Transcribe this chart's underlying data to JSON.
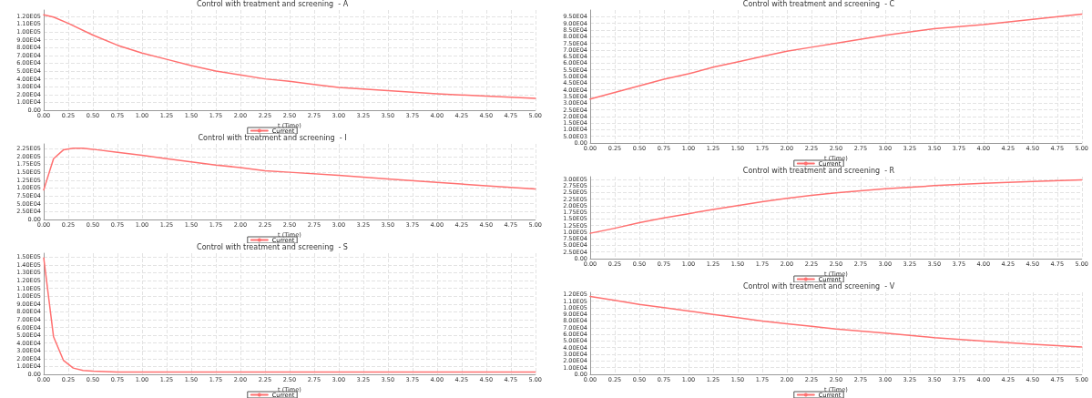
{
  "chart_data": [
    {
      "type": "line",
      "title": "Control with treatment and screening  - A",
      "xlabel": "t (Time)",
      "legend": "bottom",
      "grid": true,
      "marker": "none",
      "line_style": "solid",
      "x": [
        0,
        0.1,
        0.25,
        0.5,
        0.75,
        1,
        1.25,
        1.5,
        1.75,
        2,
        2.25,
        2.5,
        2.75,
        3,
        3.5,
        4,
        4.5,
        5
      ],
      "series": [
        {
          "name": "Current",
          "color": "#ff7070",
          "values": [
            122000,
            119000,
            111000,
            96000,
            83000,
            73000,
            65000,
            57000,
            50000,
            45000,
            40000,
            37000,
            33000,
            29000,
            25000,
            21000,
            18000,
            15000
          ]
        }
      ],
      "xlim": [
        0,
        5
      ],
      "ylim": [
        0,
        128000
      ],
      "xticks": [
        {
          "value": 0,
          "label": "0.00"
        },
        {
          "value": 0.25,
          "label": "0.25"
        },
        {
          "value": 0.5,
          "label": "0.50"
        },
        {
          "value": 0.75,
          "label": "0.75"
        },
        {
          "value": 1,
          "label": "1.00"
        },
        {
          "value": 1.25,
          "label": "1.25"
        },
        {
          "value": 1.5,
          "label": "1.50"
        },
        {
          "value": 1.75,
          "label": "1.75"
        },
        {
          "value": 2,
          "label": "2.00"
        },
        {
          "value": 2.25,
          "label": "2.25"
        },
        {
          "value": 2.5,
          "label": "2.50"
        },
        {
          "value": 2.75,
          "label": "2.75"
        },
        {
          "value": 3,
          "label": "3.00"
        },
        {
          "value": 3.25,
          "label": "3.25"
        },
        {
          "value": 3.5,
          "label": "3.50"
        },
        {
          "value": 3.75,
          "label": "3.75"
        },
        {
          "value": 4,
          "label": "4.00"
        },
        {
          "value": 4.25,
          "label": "4.25"
        },
        {
          "value": 4.5,
          "label": "4.50"
        },
        {
          "value": 4.75,
          "label": "4.75"
        },
        {
          "value": 5,
          "label": "5.00"
        }
      ],
      "yticks": [
        {
          "value": 0,
          "label": "0.00"
        },
        {
          "value": 10000,
          "label": "1.00E04"
        },
        {
          "value": 20000,
          "label": "2.00E04"
        },
        {
          "value": 30000,
          "label": "3.00E04"
        },
        {
          "value": 40000,
          "label": "4.00E04"
        },
        {
          "value": 50000,
          "label": "5.00E04"
        },
        {
          "value": 60000,
          "label": "6.00E04"
        },
        {
          "value": 70000,
          "label": "7.00E04"
        },
        {
          "value": 80000,
          "label": "8.00E04"
        },
        {
          "value": 90000,
          "label": "9.00E04"
        },
        {
          "value": 100000,
          "label": "1.00E05"
        },
        {
          "value": 110000,
          "label": "1.10E05"
        },
        {
          "value": 120000,
          "label": "1.20E05"
        }
      ]
    },
    {
      "type": "line",
      "title": "Control with treatment and screening  - C",
      "xlabel": "t (Time)",
      "legend": "bottom",
      "grid": true,
      "marker": "none",
      "line_style": "solid",
      "x": [
        0,
        0.25,
        0.5,
        0.75,
        1,
        1.25,
        1.5,
        1.75,
        2,
        2.25,
        2.5,
        3,
        3.5,
        4,
        4.5,
        5
      ],
      "series": [
        {
          "name": "Current",
          "color": "#ff7070",
          "values": [
            33000,
            38000,
            43000,
            48000,
            52000,
            57000,
            61000,
            65000,
            69000,
            72000,
            75000,
            81000,
            86000,
            89000,
            93000,
            97000
          ]
        }
      ],
      "xlim": [
        0,
        5
      ],
      "ylim": [
        0,
        100000
      ],
      "xticks": [
        {
          "value": 0,
          "label": "0.00"
        },
        {
          "value": 0.25,
          "label": "0.25"
        },
        {
          "value": 0.5,
          "label": "0.50"
        },
        {
          "value": 0.75,
          "label": "0.75"
        },
        {
          "value": 1,
          "label": "1.00"
        },
        {
          "value": 1.25,
          "label": "1.25"
        },
        {
          "value": 1.5,
          "label": "1.50"
        },
        {
          "value": 1.75,
          "label": "1.75"
        },
        {
          "value": 2,
          "label": "2.00"
        },
        {
          "value": 2.25,
          "label": "2.25"
        },
        {
          "value": 2.5,
          "label": "2.50"
        },
        {
          "value": 2.75,
          "label": "2.75"
        },
        {
          "value": 3,
          "label": "3.00"
        },
        {
          "value": 3.25,
          "label": "3.25"
        },
        {
          "value": 3.5,
          "label": "3.50"
        },
        {
          "value": 3.75,
          "label": "3.75"
        },
        {
          "value": 4,
          "label": "4.00"
        },
        {
          "value": 4.25,
          "label": "4.25"
        },
        {
          "value": 4.5,
          "label": "4.50"
        },
        {
          "value": 4.75,
          "label": "4.75"
        },
        {
          "value": 5,
          "label": "5.00"
        }
      ],
      "yticks": [
        {
          "value": 0,
          "label": "0.00"
        },
        {
          "value": 5000,
          "label": "5.00E03"
        },
        {
          "value": 10000,
          "label": "1.00E04"
        },
        {
          "value": 15000,
          "label": "1.50E04"
        },
        {
          "value": 20000,
          "label": "2.00E04"
        },
        {
          "value": 25000,
          "label": "2.50E04"
        },
        {
          "value": 30000,
          "label": "3.00E04"
        },
        {
          "value": 35000,
          "label": "3.50E04"
        },
        {
          "value": 40000,
          "label": "4.00E04"
        },
        {
          "value": 45000,
          "label": "4.50E04"
        },
        {
          "value": 50000,
          "label": "5.00E04"
        },
        {
          "value": 55000,
          "label": "5.50E04"
        },
        {
          "value": 60000,
          "label": "6.00E04"
        },
        {
          "value": 65000,
          "label": "6.50E04"
        },
        {
          "value": 70000,
          "label": "7.00E04"
        },
        {
          "value": 75000,
          "label": "7.50E04"
        },
        {
          "value": 80000,
          "label": "8.00E04"
        },
        {
          "value": 85000,
          "label": "8.50E04"
        },
        {
          "value": 90000,
          "label": "9.00E04"
        },
        {
          "value": 95000,
          "label": "9.50E04"
        }
      ]
    },
    {
      "type": "line",
      "title": "Control with treatment and screening  - I",
      "xlabel": "t (Time)",
      "legend": "bottom",
      "grid": true,
      "marker": "none",
      "line_style": "solid",
      "x": [
        0,
        0.1,
        0.2,
        0.3,
        0.4,
        0.5,
        0.75,
        1,
        1.25,
        1.5,
        1.75,
        2,
        2.25,
        2.5,
        3,
        3.5,
        4,
        4.5,
        5
      ],
      "series": [
        {
          "name": "Current",
          "color": "#ff7070",
          "values": [
            94000,
            193000,
            221000,
            226000,
            226000,
            223000,
            213000,
            204000,
            193000,
            183000,
            173000,
            165000,
            155000,
            150000,
            140000,
            129000,
            118000,
            107000,
            97000
          ]
        }
      ],
      "xlim": [
        0,
        5
      ],
      "ylim": [
        0,
        240000
      ],
      "xticks": [
        {
          "value": 0,
          "label": "0.00"
        },
        {
          "value": 0.25,
          "label": "0.25"
        },
        {
          "value": 0.5,
          "label": "0.50"
        },
        {
          "value": 0.75,
          "label": "0.75"
        },
        {
          "value": 1,
          "label": "1.00"
        },
        {
          "value": 1.25,
          "label": "1.25"
        },
        {
          "value": 1.5,
          "label": "1.50"
        },
        {
          "value": 1.75,
          "label": "1.75"
        },
        {
          "value": 2,
          "label": "2.00"
        },
        {
          "value": 2.25,
          "label": "2.25"
        },
        {
          "value": 2.5,
          "label": "2.50"
        },
        {
          "value": 2.75,
          "label": "2.75"
        },
        {
          "value": 3,
          "label": "3.00"
        },
        {
          "value": 3.25,
          "label": "3.25"
        },
        {
          "value": 3.5,
          "label": "3.50"
        },
        {
          "value": 3.75,
          "label": "3.75"
        },
        {
          "value": 4,
          "label": "4.00"
        },
        {
          "value": 4.25,
          "label": "4.25"
        },
        {
          "value": 4.5,
          "label": "4.50"
        },
        {
          "value": 4.75,
          "label": "4.75"
        },
        {
          "value": 5,
          "label": "5.00"
        }
      ],
      "yticks": [
        {
          "value": 0,
          "label": "0.00"
        },
        {
          "value": 25000,
          "label": "2.50E04"
        },
        {
          "value": 50000,
          "label": "5.00E04"
        },
        {
          "value": 75000,
          "label": "7.50E04"
        },
        {
          "value": 100000,
          "label": "1.00E05"
        },
        {
          "value": 125000,
          "label": "1.25E05"
        },
        {
          "value": 150000,
          "label": "1.50E05"
        },
        {
          "value": 175000,
          "label": "1.75E05"
        },
        {
          "value": 200000,
          "label": "2.00E05"
        },
        {
          "value": 225000,
          "label": "2.25E05"
        }
      ]
    },
    {
      "type": "line",
      "title": "Control with treatment and screening  - R",
      "xlabel": "t (Time)",
      "legend": "bottom",
      "grid": true,
      "marker": "none",
      "line_style": "solid",
      "x": [
        0,
        0.25,
        0.5,
        0.75,
        1,
        1.25,
        1.5,
        1.75,
        2,
        2.25,
        2.5,
        3,
        3.5,
        4,
        4.5,
        5
      ],
      "series": [
        {
          "name": "Current",
          "color": "#ff7070",
          "values": [
            96000,
            115000,
            136000,
            154000,
            170000,
            186000,
            201000,
            215000,
            228000,
            239000,
            249000,
            264000,
            276000,
            285000,
            292000,
            298000
          ]
        }
      ],
      "xlim": [
        0,
        5
      ],
      "ylim": [
        0,
        310000
      ],
      "xticks": [
        {
          "value": 0,
          "label": "0.00"
        },
        {
          "value": 0.25,
          "label": "0.25"
        },
        {
          "value": 0.5,
          "label": "0.50"
        },
        {
          "value": 0.75,
          "label": "0.75"
        },
        {
          "value": 1,
          "label": "1.00"
        },
        {
          "value": 1.25,
          "label": "1.25"
        },
        {
          "value": 1.5,
          "label": "1.50"
        },
        {
          "value": 1.75,
          "label": "1.75"
        },
        {
          "value": 2,
          "label": "2.00"
        },
        {
          "value": 2.25,
          "label": "2.25"
        },
        {
          "value": 2.5,
          "label": "2.50"
        },
        {
          "value": 2.75,
          "label": "2.75"
        },
        {
          "value": 3,
          "label": "3.00"
        },
        {
          "value": 3.25,
          "label": "3.25"
        },
        {
          "value": 3.5,
          "label": "3.50"
        },
        {
          "value": 3.75,
          "label": "3.75"
        },
        {
          "value": 4,
          "label": "4.00"
        },
        {
          "value": 4.25,
          "label": "4.25"
        },
        {
          "value": 4.5,
          "label": "4.50"
        },
        {
          "value": 4.75,
          "label": "4.75"
        },
        {
          "value": 5,
          "label": "5.00"
        }
      ],
      "yticks": [
        {
          "value": 0,
          "label": "0.00"
        },
        {
          "value": 25000,
          "label": "2.50E04"
        },
        {
          "value": 50000,
          "label": "5.00E04"
        },
        {
          "value": 75000,
          "label": "7.50E04"
        },
        {
          "value": 100000,
          "label": "1.00E05"
        },
        {
          "value": 125000,
          "label": "1.25E05"
        },
        {
          "value": 150000,
          "label": "1.50E05"
        },
        {
          "value": 175000,
          "label": "1.75E05"
        },
        {
          "value": 200000,
          "label": "2.00E05"
        },
        {
          "value": 225000,
          "label": "2.25E05"
        },
        {
          "value": 250000,
          "label": "2.50E05"
        },
        {
          "value": 275000,
          "label": "2.75E05"
        },
        {
          "value": 300000,
          "label": "3.00E05"
        }
      ]
    },
    {
      "type": "line",
      "title": "Control with treatment and screening  - S",
      "xlabel": "t (Time)",
      "legend": "bottom",
      "grid": true,
      "marker": "none",
      "line_style": "solid",
      "x": [
        0,
        0.1,
        0.2,
        0.3,
        0.4,
        0.5,
        0.75,
        1,
        2,
        3,
        4,
        5
      ],
      "series": [
        {
          "name": "Current",
          "color": "#ff7070",
          "values": [
            149000,
            48000,
            18000,
            8000,
            5000,
            4000,
            3000,
            3000,
            3000,
            3000,
            3000,
            3000
          ]
        }
      ],
      "xlim": [
        0,
        5
      ],
      "ylim": [
        0,
        155000
      ],
      "xticks": [
        {
          "value": 0,
          "label": "0.00"
        },
        {
          "value": 0.25,
          "label": "0.25"
        },
        {
          "value": 0.5,
          "label": "0.50"
        },
        {
          "value": 0.75,
          "label": "0.75"
        },
        {
          "value": 1,
          "label": "1.00"
        },
        {
          "value": 1.25,
          "label": "1.25"
        },
        {
          "value": 1.5,
          "label": "1.50"
        },
        {
          "value": 1.75,
          "label": "1.75"
        },
        {
          "value": 2,
          "label": "2.00"
        },
        {
          "value": 2.25,
          "label": "2.25"
        },
        {
          "value": 2.5,
          "label": "2.50"
        },
        {
          "value": 2.75,
          "label": "2.75"
        },
        {
          "value": 3,
          "label": "3.00"
        },
        {
          "value": 3.25,
          "label": "3.25"
        },
        {
          "value": 3.5,
          "label": "3.50"
        },
        {
          "value": 3.75,
          "label": "3.75"
        },
        {
          "value": 4,
          "label": "4.00"
        },
        {
          "value": 4.25,
          "label": "4.25"
        },
        {
          "value": 4.5,
          "label": "4.50"
        },
        {
          "value": 4.75,
          "label": "4.75"
        },
        {
          "value": 5,
          "label": "5.00"
        }
      ],
      "yticks": [
        {
          "value": 0,
          "label": "0.00"
        },
        {
          "value": 10000,
          "label": "1.00E04"
        },
        {
          "value": 20000,
          "label": "2.00E04"
        },
        {
          "value": 30000,
          "label": "3.00E04"
        },
        {
          "value": 40000,
          "label": "4.00E04"
        },
        {
          "value": 50000,
          "label": "5.00E04"
        },
        {
          "value": 60000,
          "label": "6.00E04"
        },
        {
          "value": 70000,
          "label": "7.00E04"
        },
        {
          "value": 80000,
          "label": "8.00E04"
        },
        {
          "value": 90000,
          "label": "9.00E04"
        },
        {
          "value": 100000,
          "label": "1.00E05"
        },
        {
          "value": 110000,
          "label": "1.10E05"
        },
        {
          "value": 120000,
          "label": "1.20E05"
        },
        {
          "value": 130000,
          "label": "1.30E05"
        },
        {
          "value": 140000,
          "label": "1.40E05"
        },
        {
          "value": 150000,
          "label": "1.50E05"
        }
      ]
    },
    {
      "type": "line",
      "title": "Control with treatment and screening  - V",
      "xlabel": "t (Time)",
      "legend": "bottom",
      "grid": true,
      "marker": "none",
      "line_style": "solid",
      "x": [
        0,
        0.25,
        0.5,
        0.75,
        1,
        1.25,
        1.5,
        1.75,
        2,
        2.25,
        2.5,
        3,
        3.5,
        4,
        4.5,
        5
      ],
      "series": [
        {
          "name": "Current",
          "color": "#ff7070",
          "values": [
            117000,
            111000,
            105000,
            100000,
            95000,
            90000,
            85000,
            80000,
            76000,
            72000,
            68000,
            62000,
            55000,
            50000,
            45000,
            41000
          ]
        }
      ],
      "xlim": [
        0,
        5
      ],
      "ylim": [
        0,
        123000
      ],
      "xticks": [
        {
          "value": 0,
          "label": "0.00"
        },
        {
          "value": 0.25,
          "label": "0.25"
        },
        {
          "value": 0.5,
          "label": "0.50"
        },
        {
          "value": 0.75,
          "label": "0.75"
        },
        {
          "value": 1,
          "label": "1.00"
        },
        {
          "value": 1.25,
          "label": "1.25"
        },
        {
          "value": 1.5,
          "label": "1.50"
        },
        {
          "value": 1.75,
          "label": "1.75"
        },
        {
          "value": 2,
          "label": "2.00"
        },
        {
          "value": 2.25,
          "label": "2.25"
        },
        {
          "value": 2.5,
          "label": "2.50"
        },
        {
          "value": 2.75,
          "label": "2.75"
        },
        {
          "value": 3,
          "label": "3.00"
        },
        {
          "value": 3.25,
          "label": "3.25"
        },
        {
          "value": 3.5,
          "label": "3.50"
        },
        {
          "value": 3.75,
          "label": "3.75"
        },
        {
          "value": 4,
          "label": "4.00"
        },
        {
          "value": 4.25,
          "label": "4.25"
        },
        {
          "value": 4.5,
          "label": "4.50"
        },
        {
          "value": 4.75,
          "label": "4.75"
        },
        {
          "value": 5,
          "label": "5.00"
        }
      ],
      "yticks": [
        {
          "value": 0,
          "label": "0.00"
        },
        {
          "value": 10000,
          "label": "1.00E04"
        },
        {
          "value": 20000,
          "label": "2.00E04"
        },
        {
          "value": 30000,
          "label": "3.00E04"
        },
        {
          "value": 40000,
          "label": "4.00E04"
        },
        {
          "value": 50000,
          "label": "5.00E04"
        },
        {
          "value": 60000,
          "label": "6.00E04"
        },
        {
          "value": 70000,
          "label": "7.00E04"
        },
        {
          "value": 80000,
          "label": "8.00E04"
        },
        {
          "value": 90000,
          "label": "9.00E04"
        },
        {
          "value": 100000,
          "label": "1.00E05"
        },
        {
          "value": 110000,
          "label": "1.10E05"
        },
        {
          "value": 120000,
          "label": "1.20E05"
        }
      ]
    }
  ]
}
